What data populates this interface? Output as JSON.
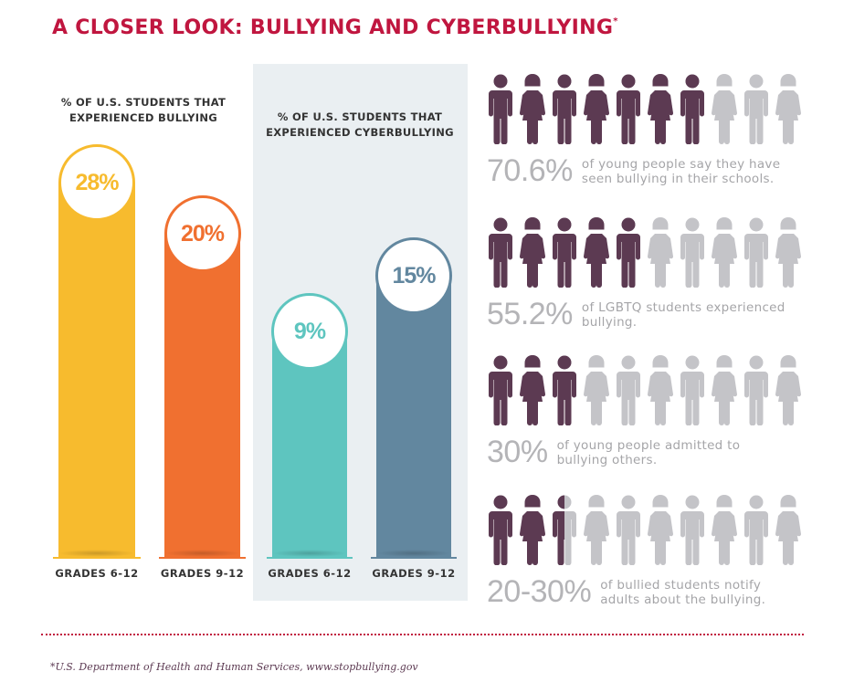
{
  "title": "A CLOSER LOOK: BULLYING AND CYBERBULLYING",
  "title_mark": "*",
  "colors": {
    "title": "#c0163f",
    "figure_filled": "#5c3a52",
    "figure_empty": "#c4c4c8",
    "panel": "#eaeff2"
  },
  "chart_data": [
    {
      "type": "bar",
      "title": "% OF U.S. STUDENTS THAT EXPERIENCED BULLYING",
      "categories": [
        "GRADES 6-12",
        "GRADES 9-12"
      ],
      "values": [
        28,
        20
      ],
      "labels": [
        "28%",
        "20%"
      ],
      "unit": "%",
      "colors": [
        "#f7bb2e",
        "#f07030"
      ]
    },
    {
      "type": "bar",
      "title": "% OF U.S. STUDENTS THAT EXPERIENCED CYBERBULLYING",
      "categories": [
        "GRADES 6-12",
        "GRADES 9-12"
      ],
      "values": [
        9,
        15
      ],
      "labels": [
        "9%",
        "15%"
      ],
      "unit": "%",
      "colors": [
        "#5ec5bf",
        "#62879f"
      ]
    }
  ],
  "pictograms": [
    {
      "value": "70.6%",
      "filled": 7,
      "total": 10,
      "line1": "of young people say they have",
      "line2": "seen bullying in their schools."
    },
    {
      "value": "55.2%",
      "filled": 5,
      "total": 10,
      "line1": "of LGBTQ students experienced",
      "line2": "bullying."
    },
    {
      "value": "30%",
      "filled": 3,
      "total": 10,
      "line1": "of young people admitted to",
      "line2": "bullying others."
    },
    {
      "value": "20-30%",
      "filled": 2.5,
      "total": 10,
      "line1": "of bullied students notify",
      "line2": "adults about the bullying."
    }
  ],
  "footnote": "*U.S. Department of Health and Human Services, www.stopbullying.gov"
}
